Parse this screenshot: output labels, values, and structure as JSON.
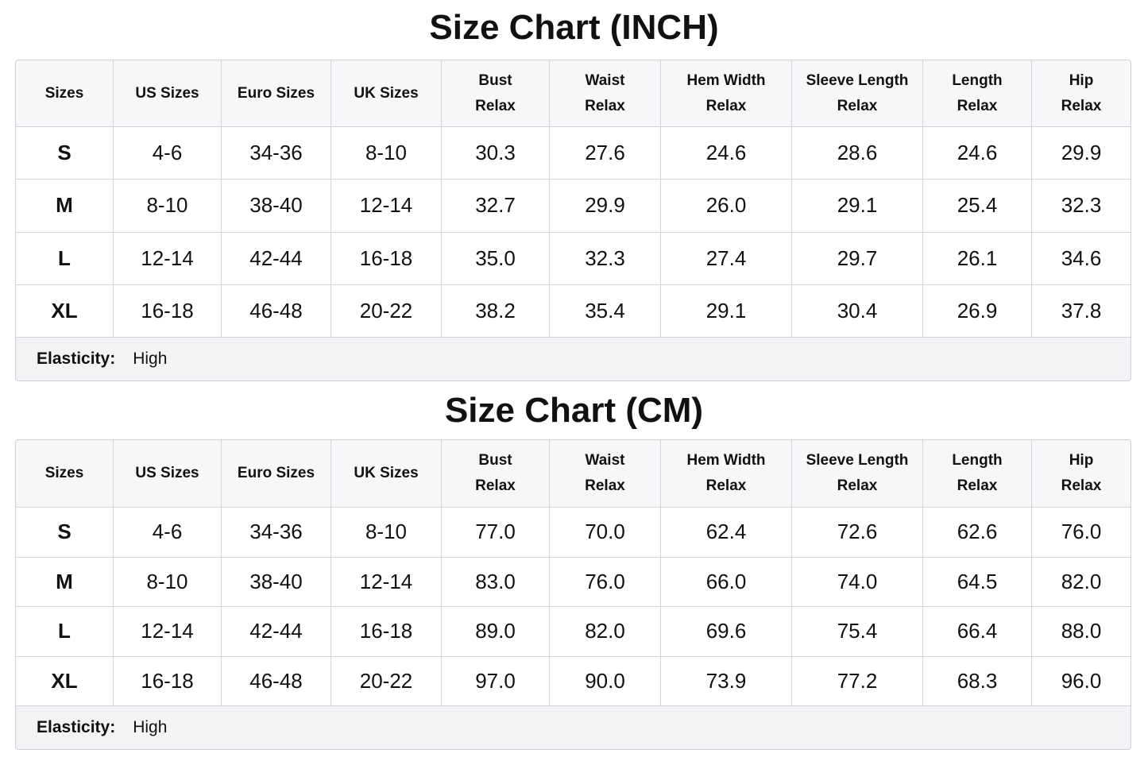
{
  "charts": [
    {
      "title": "Size Chart (INCH)",
      "headers": [
        [
          "Sizes"
        ],
        [
          "US Sizes"
        ],
        [
          "Euro Sizes"
        ],
        [
          "UK Sizes"
        ],
        [
          "Bust",
          "Relax"
        ],
        [
          "Waist",
          "Relax"
        ],
        [
          "Hem Width",
          "Relax"
        ],
        [
          "Sleeve Length",
          "Relax"
        ],
        [
          "Length",
          "Relax"
        ],
        [
          "Hip",
          "Relax"
        ]
      ],
      "rows": [
        [
          "S",
          "4-6",
          "34-36",
          "8-10",
          "30.3",
          "27.6",
          "24.6",
          "28.6",
          "24.6",
          "29.9"
        ],
        [
          "M",
          "8-10",
          "38-40",
          "12-14",
          "32.7",
          "29.9",
          "26.0",
          "29.1",
          "25.4",
          "32.3"
        ],
        [
          "L",
          "12-14",
          "42-44",
          "16-18",
          "35.0",
          "32.3",
          "27.4",
          "29.7",
          "26.1",
          "34.6"
        ],
        [
          "XL",
          "16-18",
          "46-48",
          "20-22",
          "38.2",
          "35.4",
          "29.1",
          "30.4",
          "26.9",
          "37.8"
        ]
      ],
      "elasticity": {
        "label": "Elasticity:",
        "value": "High"
      }
    },
    {
      "title": "Size Chart (CM)",
      "headers": [
        [
          "Sizes"
        ],
        [
          "US Sizes"
        ],
        [
          "Euro Sizes"
        ],
        [
          "UK Sizes"
        ],
        [
          "Bust",
          "Relax"
        ],
        [
          "Waist",
          "Relax"
        ],
        [
          "Hem Width",
          "Relax"
        ],
        [
          "Sleeve Length",
          "Relax"
        ],
        [
          "Length",
          "Relax"
        ],
        [
          "Hip",
          "Relax"
        ]
      ],
      "rows": [
        [
          "S",
          "4-6",
          "34-36",
          "8-10",
          "77.0",
          "70.0",
          "62.4",
          "72.6",
          "62.6",
          "76.0"
        ],
        [
          "M",
          "8-10",
          "38-40",
          "12-14",
          "83.0",
          "76.0",
          "66.0",
          "74.0",
          "64.5",
          "82.0"
        ],
        [
          "L",
          "12-14",
          "42-44",
          "16-18",
          "89.0",
          "82.0",
          "69.6",
          "75.4",
          "66.4",
          "88.0"
        ],
        [
          "XL",
          "16-18",
          "46-48",
          "20-22",
          "97.0",
          "90.0",
          "73.9",
          "77.2",
          "68.3",
          "96.0"
        ]
      ],
      "elasticity": {
        "label": "Elasticity:",
        "value": "High"
      }
    }
  ]
}
